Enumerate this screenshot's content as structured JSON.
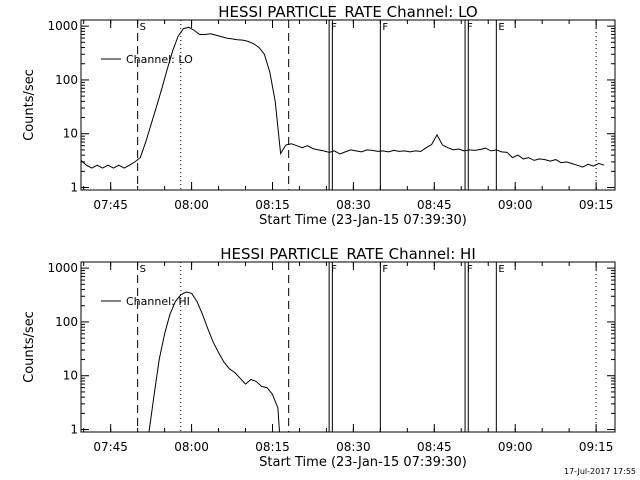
{
  "chart_data": [
    {
      "type": "line",
      "scale": "log",
      "title": "HESSI PARTICLE_RATE Channel: LO",
      "xlabel": "Start Time (23-Jan-15 07:39:30)",
      "ylabel": "Counts/sec",
      "xlim_minutes_after_start": [
        0,
        99
      ],
      "ylim": [
        0.9,
        1300
      ],
      "x_ticks": [
        "07:45",
        "08:00",
        "08:15",
        "08:30",
        "08:45",
        "09:00",
        "09:15"
      ],
      "y_ticks": [
        "1",
        "10",
        "100",
        "1000"
      ],
      "legend_position": "top-left",
      "series": [
        {
          "name": "Channel: LO",
          "x_minutes_after_start": [
            0,
            1,
            2,
            3,
            4,
            5,
            6,
            7,
            8,
            9,
            10,
            11,
            12,
            13,
            14,
            15,
            16,
            17,
            18,
            19,
            20,
            21,
            22,
            23,
            24,
            25,
            26,
            27,
            28,
            29,
            30,
            31,
            32,
            33,
            34,
            35,
            36,
            37,
            38,
            39,
            40,
            41,
            42,
            43,
            44,
            45,
            46,
            47,
            48,
            49,
            50,
            51,
            52,
            53,
            54,
            55,
            56,
            57,
            58,
            59,
            60,
            61,
            62,
            63,
            64,
            65,
            66,
            67,
            68,
            69,
            70,
            71,
            72,
            73,
            74,
            75,
            76,
            77,
            78,
            79,
            80,
            81,
            82,
            83,
            84,
            85,
            86,
            87,
            88,
            89,
            90,
            91,
            92,
            93,
            94,
            95,
            96,
            97
          ],
          "values": [
            3.2,
            2.6,
            2.3,
            2.6,
            2.3,
            2.6,
            2.3,
            2.6,
            2.3,
            2.6,
            3.0,
            3.6,
            7,
            15,
            32,
            70,
            160,
            350,
            650,
            900,
            950,
            830,
            700,
            700,
            720,
            680,
            640,
            600,
            580,
            560,
            550,
            520,
            470,
            400,
            300,
            140,
            40,
            4.3,
            6.2,
            6.5,
            6.0,
            5.5,
            6.0,
            5.3,
            5.0,
            4.8,
            4.5,
            4.8,
            4.2,
            4.6,
            5.0,
            4.8,
            4.6,
            5.0,
            4.9,
            4.7,
            4.8,
            4.6,
            4.9,
            4.7,
            4.8,
            4.6,
            4.8,
            4.7,
            5.5,
            6.3,
            9.5,
            6.2,
            5.5,
            5.0,
            5.2,
            4.8,
            5.0,
            4.9,
            5.1,
            5.4,
            4.8,
            5.0,
            4.6,
            4.5,
            3.6,
            4.0,
            3.4,
            3.6,
            3.2,
            3.4,
            3.3,
            3.1,
            3.3,
            2.9,
            3.0,
            2.8,
            2.6,
            2.4,
            2.7,
            2.5,
            2.8,
            2.6
          ]
        }
      ],
      "event_markers": [
        {
          "label": "S",
          "x_minutes_after_start": 10.5,
          "style": "dashed"
        },
        {
          "label": "",
          "x_minutes_after_start": 18.5,
          "style": "dotted"
        },
        {
          "label": "",
          "x_minutes_after_start": 38.5,
          "style": "dashed"
        },
        {
          "label": "F",
          "x_minutes_after_start": 46.0,
          "style": "solid"
        },
        {
          "label": "",
          "x_minutes_after_start": 46.6,
          "style": "solid"
        },
        {
          "label": "F",
          "x_minutes_after_start": 55.5,
          "style": "solid"
        },
        {
          "label": "F",
          "x_minutes_after_start": 71.2,
          "style": "solid"
        },
        {
          "label": "",
          "x_minutes_after_start": 71.8,
          "style": "solid"
        },
        {
          "label": "E",
          "x_minutes_after_start": 77.0,
          "style": "solid"
        },
        {
          "label": "",
          "x_minutes_after_start": 95.5,
          "style": "dotted"
        }
      ]
    },
    {
      "type": "line",
      "scale": "log",
      "title": "HESSI PARTICLE_RATE Channel: HI",
      "xlabel": "Start Time (23-Jan-15 07:39:30)",
      "ylabel": "Counts/sec",
      "xlim_minutes_after_start": [
        0,
        99
      ],
      "ylim": [
        0.9,
        1300
      ],
      "x_ticks": [
        "07:45",
        "08:00",
        "08:15",
        "08:30",
        "08:45",
        "09:00",
        "09:15"
      ],
      "y_ticks": [
        "1",
        "10",
        "100",
        "1000"
      ],
      "legend_position": "top-left",
      "series": [
        {
          "name": "Channel: HI",
          "x_minutes_after_start": [
            12.6,
            13.5,
            14.5,
            15.5,
            16.5,
            17.5,
            18.5,
            19.5,
            20.5,
            21.5,
            22.5,
            23.5,
            24.5,
            25.5,
            26.5,
            27.5,
            28.5,
            29.5,
            30.5,
            31.5,
            32.5,
            33.5,
            34.5,
            35.5,
            36.5,
            36.8
          ],
          "values": [
            0.9,
            4,
            20,
            60,
            140,
            240,
            320,
            360,
            340,
            240,
            140,
            75,
            42,
            27,
            18,
            13.5,
            11.5,
            9.0,
            7.0,
            8.5,
            7.8,
            6.3,
            6.0,
            4.5,
            2.5,
            0.9
          ]
        }
      ],
      "event_markers": [
        {
          "label": "S",
          "x_minutes_after_start": 10.5,
          "style": "dashed"
        },
        {
          "label": "",
          "x_minutes_after_start": 18.5,
          "style": "dotted"
        },
        {
          "label": "",
          "x_minutes_after_start": 38.5,
          "style": "dashed"
        },
        {
          "label": "F",
          "x_minutes_after_start": 46.0,
          "style": "solid"
        },
        {
          "label": "",
          "x_minutes_after_start": 46.6,
          "style": "solid"
        },
        {
          "label": "F",
          "x_minutes_after_start": 55.5,
          "style": "solid"
        },
        {
          "label": "F",
          "x_minutes_after_start": 71.2,
          "style": "solid"
        },
        {
          "label": "",
          "x_minutes_after_start": 71.8,
          "style": "solid"
        },
        {
          "label": "E",
          "x_minutes_after_start": 77.0,
          "style": "solid"
        },
        {
          "label": "",
          "x_minutes_after_start": 95.5,
          "style": "dotted"
        }
      ]
    }
  ],
  "footer_date": "17-Jul-2017 17:55"
}
